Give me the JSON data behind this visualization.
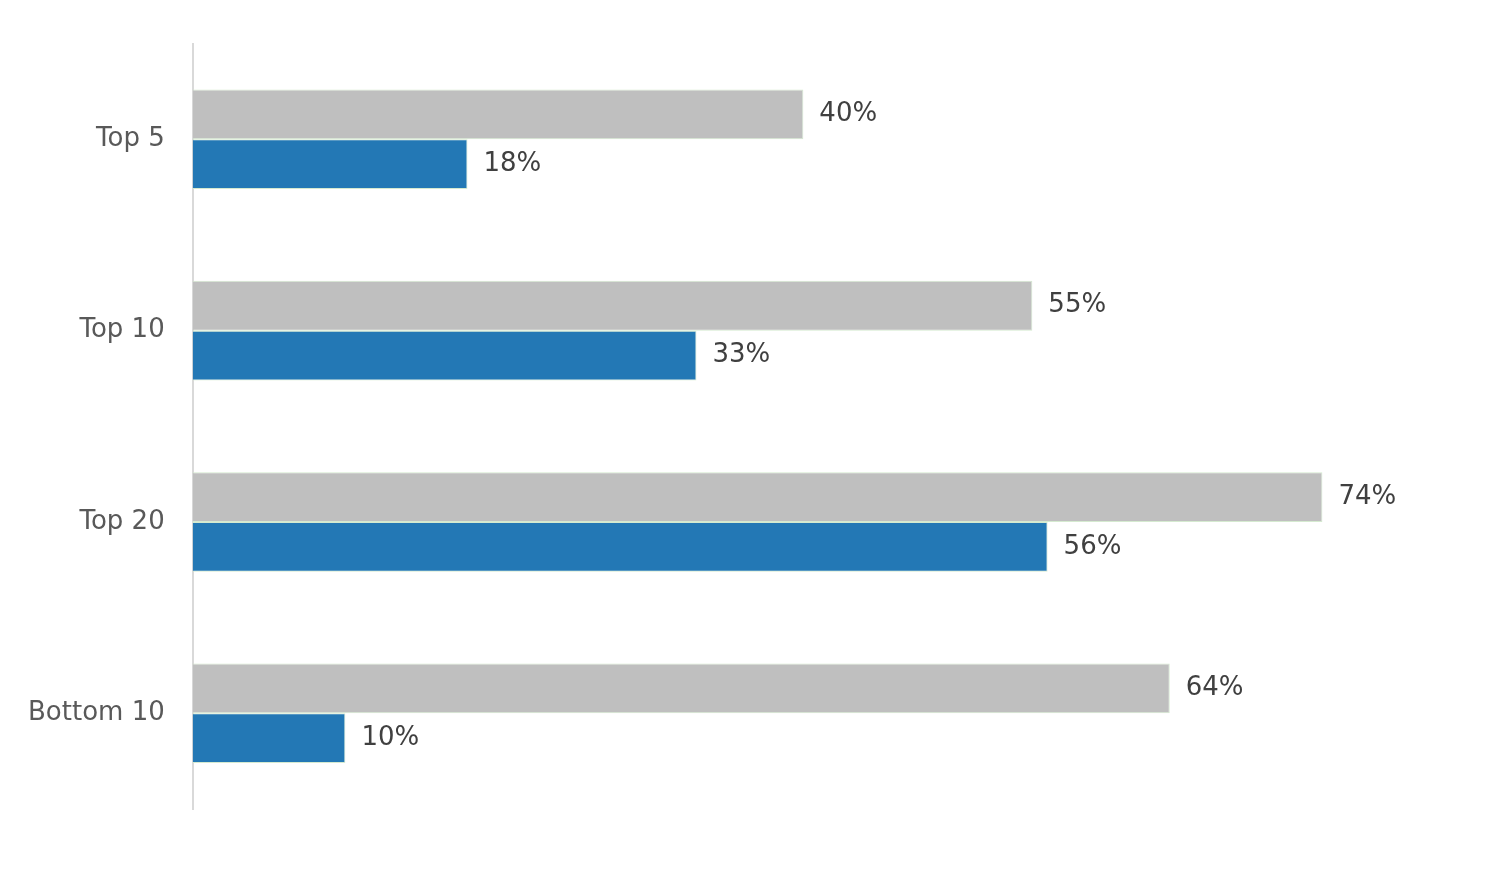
{
  "chart_data": {
    "type": "bar",
    "orientation": "horizontal",
    "categories": [
      "Top 5",
      "Top 10",
      "Top 20",
      "Bottom 10"
    ],
    "series": [
      {
        "color": "#bfbfbf",
        "values": [
          40,
          55,
          74,
          64
        ],
        "value_labels": [
          "40%",
          "55%",
          "74%",
          "64%"
        ]
      },
      {
        "color": "#2378b5",
        "values": [
          18,
          33,
          56,
          10
        ],
        "value_labels": [
          "18%",
          "33%",
          "56%",
          "10%"
        ]
      }
    ]
  }
}
